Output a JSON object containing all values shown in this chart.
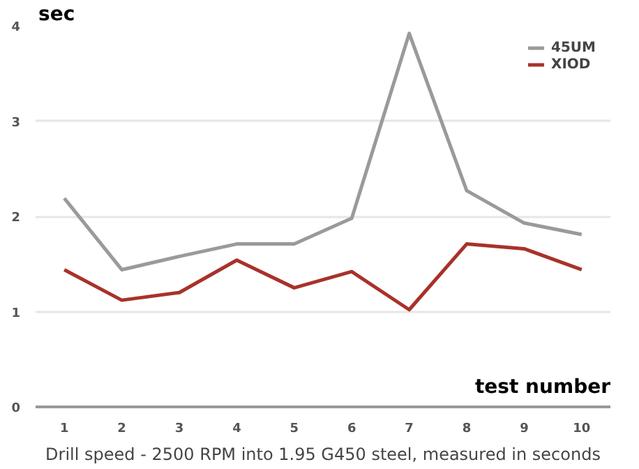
{
  "chart_data": {
    "type": "line",
    "xlabel": "test number",
    "ylabel": "sec",
    "annotations": [
      "Drill speed - 2500 RPM into 1.95 G450 steel, measured in seconds"
    ],
    "x": [
      1,
      2,
      3,
      4,
      5,
      6,
      7,
      8,
      9,
      10
    ],
    "xlim": [
      0.5,
      10.5
    ],
    "xticks": [
      1,
      2,
      3,
      4,
      5,
      6,
      7,
      8,
      9,
      10
    ],
    "ylim": [
      0,
      4
    ],
    "yticks": [
      0,
      1,
      2,
      3,
      4
    ],
    "grid": "y",
    "legend": "top right",
    "marker": "none",
    "line_style": "solid",
    "series": [
      {
        "name": "45UM",
        "color": "#9a9a9a",
        "values": [
          2.19,
          1.44,
          1.58,
          1.71,
          1.71,
          1.98,
          3.92,
          2.27,
          1.93,
          1.81
        ]
      },
      {
        "name": "XIOD",
        "color": "#a8322a",
        "values": [
          1.44,
          1.12,
          1.2,
          1.54,
          1.25,
          1.42,
          1.02,
          1.71,
          1.66,
          1.44
        ]
      }
    ]
  }
}
